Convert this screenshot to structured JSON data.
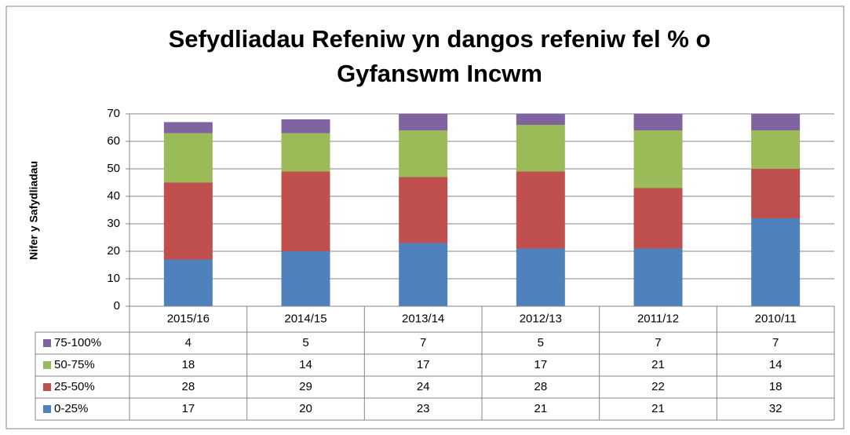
{
  "chart_data": {
    "type": "stacked-bar",
    "title": "Sefydliadau Refeniw yn dangos refeniw fel % o",
    "title_line2": "Gyfanswm Incwm",
    "ylabel": "Nifer y Safydliadau",
    "categories": [
      "2015/16",
      "2014/15",
      "2013/14",
      "2012/13",
      "2011/12",
      "2010/11"
    ],
    "series": [
      {
        "name": "0-25%",
        "color": "#4f81bd",
        "values": [
          17,
          20,
          23,
          21,
          21,
          32
        ]
      },
      {
        "name": "25-50%",
        "color": "#c0504d",
        "values": [
          28,
          29,
          24,
          28,
          22,
          18
        ]
      },
      {
        "name": "50-75%",
        "color": "#9bbb59",
        "values": [
          18,
          14,
          17,
          17,
          21,
          14
        ]
      },
      {
        "name": "75-100%",
        "color": "#8064a2",
        "values": [
          4,
          5,
          7,
          5,
          7,
          7
        ]
      }
    ],
    "ylim": [
      0,
      70
    ],
    "yticks": [
      0,
      10,
      20,
      30,
      40,
      50,
      60,
      70
    ],
    "grid": true
  }
}
